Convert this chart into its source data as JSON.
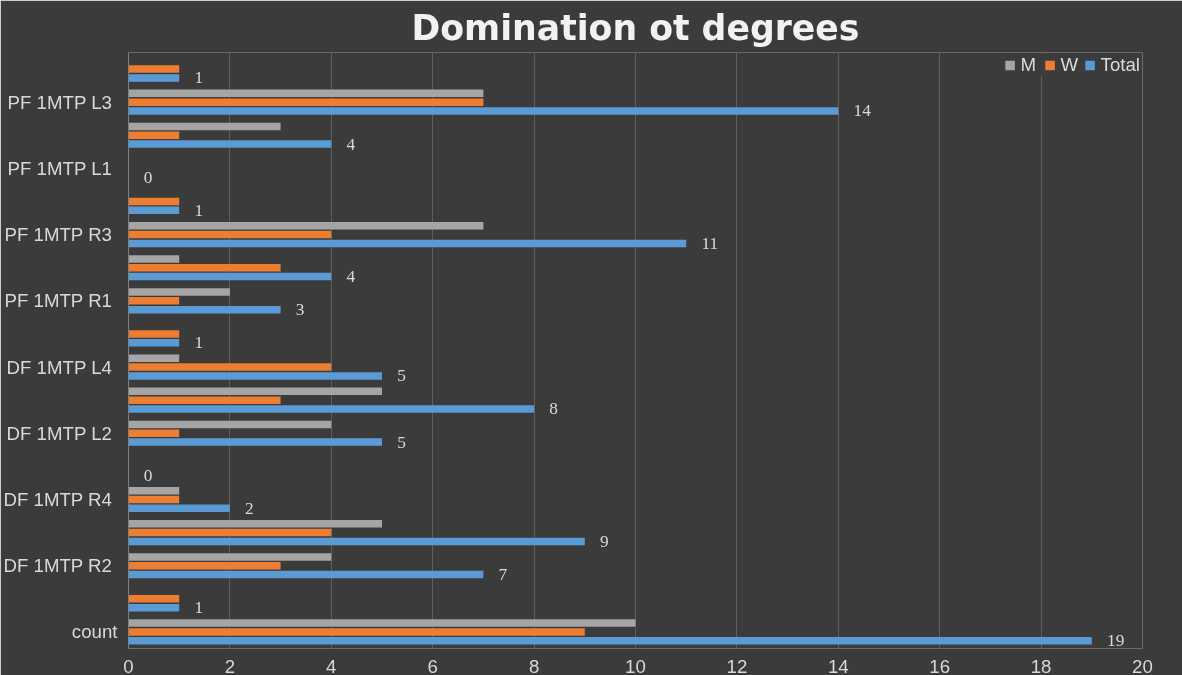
{
  "chart_data": {
    "type": "bar",
    "orientation": "horizontal",
    "title": "Domination ot degrees",
    "categories": [
      null,
      "PF 1MTP  L3",
      null,
      "PF 1MTP  L1",
      null,
      "PF 1MTP  R3",
      null,
      "PF 1MTP  R1",
      null,
      "DF 1MTP  L4",
      null,
      "DF 1MTP  L2",
      null,
      "DF 1MTP  R4",
      null,
      "DF 1MTP  R2",
      null,
      "count"
    ],
    "series": [
      {
        "name": "Total",
        "color": "#5b9bd5",
        "values": [
          1,
          14,
          4,
          0,
          1,
          11,
          4,
          3,
          1,
          5,
          8,
          5,
          0,
          2,
          9,
          7,
          1,
          19
        ],
        "value_labels": [
          "1",
          "14",
          "4",
          "0",
          "1",
          "11",
          "4",
          "3",
          "1",
          "5",
          "8",
          "5",
          "0",
          "2",
          "9",
          "7",
          "1",
          "19"
        ]
      },
      {
        "name": "W",
        "color": "#ed7d31",
        "values": [
          1,
          7,
          1,
          0,
          1,
          4,
          3,
          1,
          1,
          4,
          3,
          1,
          0,
          1,
          4,
          3,
          1,
          9
        ]
      },
      {
        "name": "M",
        "color": "#a5a5a5",
        "values": [
          0,
          7,
          3,
          0,
          0,
          7,
          1,
          2,
          0,
          1,
          5,
          4,
          0,
          1,
          5,
          4,
          0,
          10
        ]
      }
    ],
    "xlim": [
      0,
      20
    ],
    "xticks": [
      0,
      2,
      4,
      6,
      8,
      10,
      12,
      14,
      16,
      18,
      20
    ],
    "grid": "x",
    "legend": "top right"
  }
}
